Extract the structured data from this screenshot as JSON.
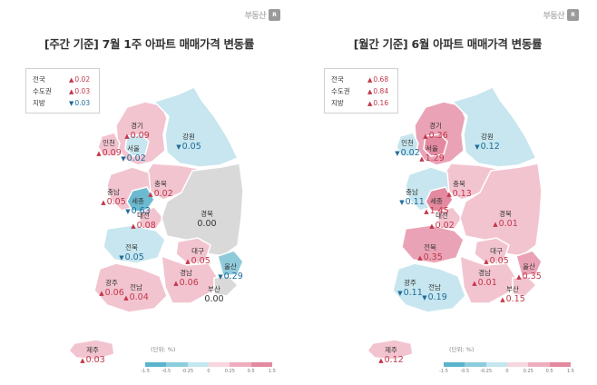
{
  "logo": {
    "text": "부동산",
    "mark": "R"
  },
  "colors": {
    "up_text": "#c2384b",
    "down_text": "#1e6c9a",
    "flat_fill": "#d9d9d9"
  },
  "scale": {
    "unit": "(단위: %)",
    "ticks": [
      "-1.5",
      "-0.5",
      "-0.25",
      "0",
      "0.25",
      "0.5",
      "1.5"
    ],
    "colors": [
      "#5ab4cc",
      "#8ccddd",
      "#c3e6ef",
      "#f7d6de",
      "#eeaebf",
      "#e38aa0"
    ]
  },
  "panels": [
    {
      "title": "[주간 기준] 7월 1주 아파트 매매가격 변동률",
      "legend": [
        {
          "label": "전국",
          "dir": "up",
          "value": "0.02"
        },
        {
          "label": "수도권",
          "dir": "up",
          "value": "0.03"
        },
        {
          "label": "지방",
          "dir": "down",
          "value": "0.03"
        }
      ],
      "regions": [
        {
          "key": "gyeonggi",
          "name": "경기",
          "dir": "up",
          "value": "0.09"
        },
        {
          "key": "incheon",
          "name": "인천",
          "dir": "up",
          "value": "0.09"
        },
        {
          "key": "seoul",
          "name": "서울",
          "dir": "down",
          "value": "0.02"
        },
        {
          "key": "gangwon",
          "name": "강원",
          "dir": "down",
          "value": "0.05"
        },
        {
          "key": "chungbuk",
          "name": "충북",
          "dir": "up",
          "value": "0.02"
        },
        {
          "key": "chungnam",
          "name": "충남",
          "dir": "up",
          "value": "0.05"
        },
        {
          "key": "sejong",
          "name": "세종",
          "dir": "down",
          "value": "0.63"
        },
        {
          "key": "daejeon",
          "name": "대전",
          "dir": "up",
          "value": "0.08"
        },
        {
          "key": "gyeongbuk",
          "name": "경북",
          "dir": "flat",
          "value": "0.00"
        },
        {
          "key": "jeonbuk",
          "name": "전북",
          "dir": "down",
          "value": "0.05"
        },
        {
          "key": "daegu",
          "name": "대구",
          "dir": "up",
          "value": "0.05"
        },
        {
          "key": "ulsan",
          "name": "울산",
          "dir": "down",
          "value": "0.29"
        },
        {
          "key": "gwangju",
          "name": "광주",
          "dir": "up",
          "value": "0.06"
        },
        {
          "key": "jeonnam",
          "name": "전남",
          "dir": "up",
          "value": "0.04"
        },
        {
          "key": "gyeongnam",
          "name": "경남",
          "dir": "up",
          "value": "0.06"
        },
        {
          "key": "busan",
          "name": "부산",
          "dir": "flat",
          "value": "0.00"
        },
        {
          "key": "jeju",
          "name": "제주",
          "dir": "up",
          "value": "0.03"
        }
      ],
      "fills": {
        "gyeonggi": "#f2c4d0",
        "seoul": "#c7e6ef",
        "incheon": "#f2c4d0",
        "gangwon": "#c7e6ef",
        "chungbuk": "#f2c4d0",
        "chungnam": "#f2c4d0",
        "sejong": "#6cbad0",
        "daejeon": "#f2c4d0",
        "gyeongbuk": "#d9d9d9",
        "jeonbuk": "#c7e6ef",
        "daegu": "#f2c4d0",
        "ulsan": "#8fcadb",
        "gwangju": "#f2c4d0",
        "jeonnam": "#f2c4d0",
        "gyeongnam": "#f2c4d0",
        "busan": "#d9d9d9",
        "jeju": "#f2c4d0"
      }
    },
    {
      "title": "[월간 기준] 6월 아파트 매매가격 변동률",
      "legend": [
        {
          "label": "전국",
          "dir": "up",
          "value": "0.68"
        },
        {
          "label": "수도권",
          "dir": "up",
          "value": "0.84"
        },
        {
          "label": "지방",
          "dir": "up",
          "value": "0.16"
        }
      ],
      "regions": [
        {
          "key": "gyeonggi",
          "name": "경기",
          "dir": "up",
          "value": "0.36"
        },
        {
          "key": "incheon",
          "name": "인천",
          "dir": "down",
          "value": "0.02"
        },
        {
          "key": "seoul",
          "name": "서울",
          "dir": "up",
          "value": "1.29"
        },
        {
          "key": "gangwon",
          "name": "강원",
          "dir": "down",
          "value": "0.12"
        },
        {
          "key": "chungbuk",
          "name": "충북",
          "dir": "up",
          "value": "0.13"
        },
        {
          "key": "chungnam",
          "name": "충남",
          "dir": "down",
          "value": "0.11"
        },
        {
          "key": "sejong",
          "name": "세종",
          "dir": "up",
          "value": "1.45"
        },
        {
          "key": "daejeon",
          "name": "대전",
          "dir": "up",
          "value": "0.02"
        },
        {
          "key": "gyeongbuk",
          "name": "경북",
          "dir": "up",
          "value": "0.01"
        },
        {
          "key": "jeonbuk",
          "name": "전북",
          "dir": "up",
          "value": "0.35"
        },
        {
          "key": "daegu",
          "name": "대구",
          "dir": "up",
          "value": "0.05"
        },
        {
          "key": "ulsan",
          "name": "울산",
          "dir": "up",
          "value": "0.35"
        },
        {
          "key": "gwangju",
          "name": "광주",
          "dir": "down",
          "value": "0.11"
        },
        {
          "key": "jeonnam",
          "name": "전남",
          "dir": "down",
          "value": "0.19"
        },
        {
          "key": "gyeongnam",
          "name": "경남",
          "dir": "up",
          "value": "0.01"
        },
        {
          "key": "busan",
          "name": "부산",
          "dir": "up",
          "value": "0.15"
        },
        {
          "key": "jeju",
          "name": "제주",
          "dir": "up",
          "value": "0.12"
        }
      ],
      "fills": {
        "gyeonggi": "#eaa3b6",
        "seoul": "#e38aa0",
        "incheon": "#c7e6ef",
        "gangwon": "#c7e6ef",
        "chungbuk": "#f2c4d0",
        "chungnam": "#c7e6ef",
        "sejong": "#e38aa0",
        "daejeon": "#f2c4d0",
        "gyeongbuk": "#f2c4d0",
        "jeonbuk": "#eaa3b6",
        "daegu": "#f2c4d0",
        "ulsan": "#eaa3b6",
        "gwangju": "#c7e6ef",
        "jeonnam": "#c7e6ef",
        "gyeongnam": "#f2c4d0",
        "busan": "#f2c4d0",
        "jeju": "#f2c4d0"
      }
    }
  ]
}
